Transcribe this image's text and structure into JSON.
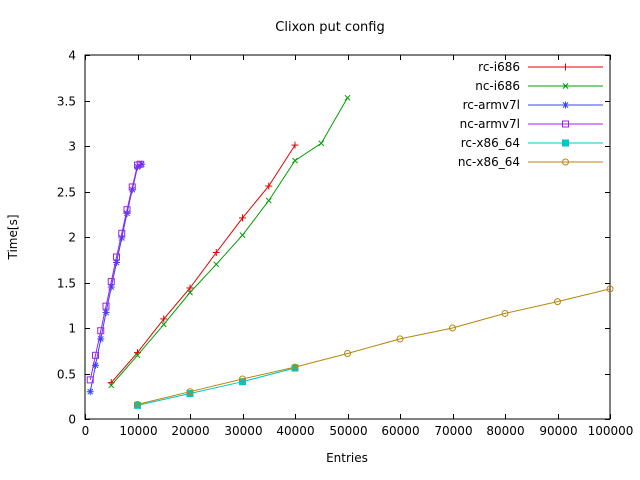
{
  "chart_data": {
    "type": "line",
    "title": "Clixon put config",
    "xlabel": "Entries",
    "ylabel": "Time[s]",
    "xlim": [
      0,
      100000
    ],
    "ylim": [
      0,
      4
    ],
    "xticks": [
      0,
      10000,
      20000,
      30000,
      40000,
      50000,
      60000,
      70000,
      80000,
      90000,
      100000
    ],
    "yticks": [
      0,
      0.5,
      1,
      1.5,
      2,
      2.5,
      3,
      3.5,
      4
    ],
    "grid": false,
    "legend_position": "top-right-inside",
    "series": [
      {
        "name": "rc-i686",
        "color": "#e00000",
        "marker": "plus",
        "points": [
          [
            5000,
            0.4
          ],
          [
            10000,
            0.73
          ],
          [
            15000,
            1.1
          ],
          [
            20000,
            1.44
          ],
          [
            25000,
            1.83
          ],
          [
            30000,
            2.21
          ],
          [
            35000,
            2.56
          ],
          [
            40000,
            3.01
          ]
        ]
      },
      {
        "name": "nc-i686",
        "color": "#00a000",
        "marker": "cross",
        "points": [
          [
            5000,
            0.37
          ],
          [
            10000,
            0.7
          ],
          [
            15000,
            1.04
          ],
          [
            20000,
            1.39
          ],
          [
            25000,
            1.7
          ],
          [
            30000,
            2.02
          ],
          [
            35000,
            2.4
          ],
          [
            40000,
            2.84
          ],
          [
            45000,
            3.03
          ],
          [
            50000,
            3.53
          ]
        ]
      },
      {
        "name": "rc-armv7l",
        "color": "#3344ff",
        "marker": "asterisk",
        "points": [
          [
            1000,
            0.3
          ],
          [
            2000,
            0.59
          ],
          [
            3000,
            0.88
          ],
          [
            4000,
            1.17
          ],
          [
            5000,
            1.45
          ],
          [
            6000,
            1.72
          ],
          [
            7000,
            1.99
          ],
          [
            8000,
            2.26
          ],
          [
            9000,
            2.52
          ],
          [
            10000,
            2.77
          ],
          [
            10800,
            2.8
          ]
        ]
      },
      {
        "name": "nc-armv7l",
        "color": "#a020f0",
        "marker": "open-square",
        "points": [
          [
            1000,
            0.43
          ],
          [
            2000,
            0.7
          ],
          [
            3000,
            0.97
          ],
          [
            4000,
            1.24
          ],
          [
            5000,
            1.51
          ],
          [
            6000,
            1.78
          ],
          [
            7000,
            2.04
          ],
          [
            8000,
            2.3
          ],
          [
            9000,
            2.55
          ],
          [
            10000,
            2.79
          ],
          [
            10500,
            2.8
          ]
        ]
      },
      {
        "name": "rc-x86_64",
        "color": "#00c5c5",
        "marker": "filled-square",
        "points": [
          [
            10000,
            0.15
          ],
          [
            20000,
            0.28
          ],
          [
            30000,
            0.41
          ],
          [
            40000,
            0.56
          ]
        ]
      },
      {
        "name": "nc-x86_64",
        "color": "#b8860b",
        "marker": "open-circle",
        "points": [
          [
            10000,
            0.16
          ],
          [
            20000,
            0.3
          ],
          [
            30000,
            0.44
          ],
          [
            40000,
            0.57
          ],
          [
            50000,
            0.72
          ],
          [
            60000,
            0.88
          ],
          [
            70000,
            1.0
          ],
          [
            80000,
            1.16
          ],
          [
            90000,
            1.29
          ],
          [
            100000,
            1.43
          ]
        ]
      }
    ]
  }
}
